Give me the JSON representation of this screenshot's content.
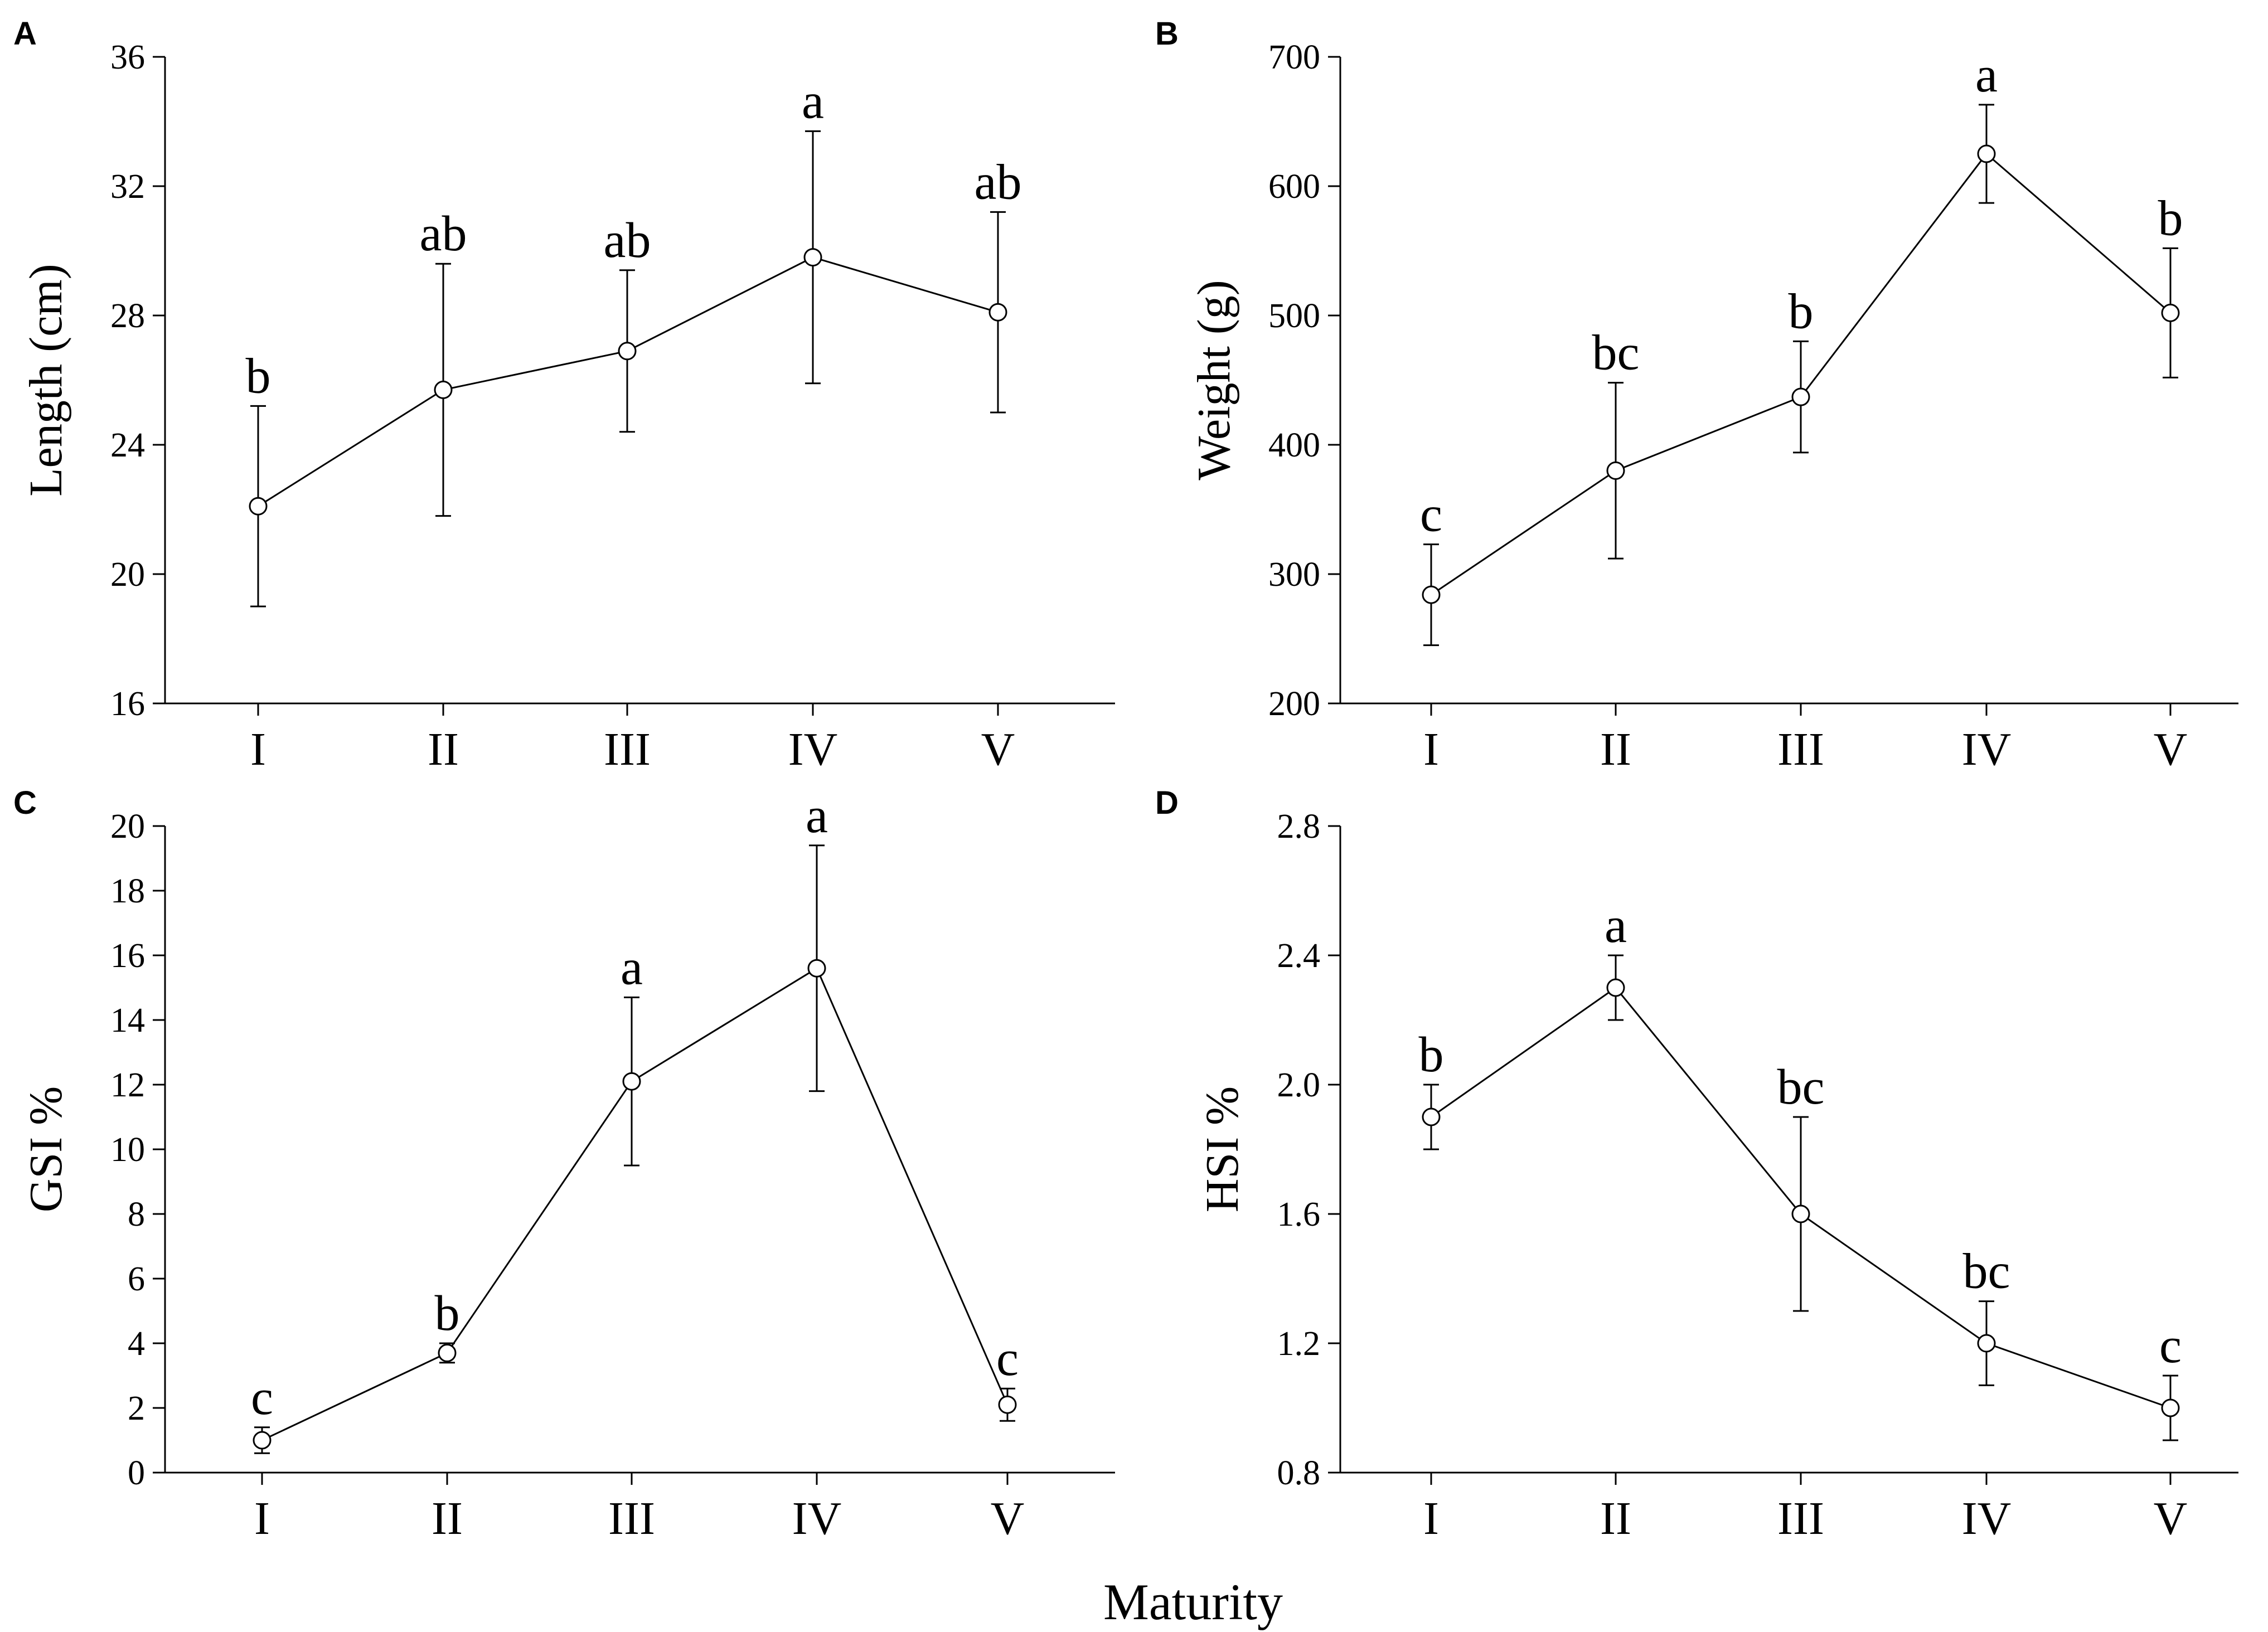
{
  "figure": {
    "common_xlabel": "Maturity"
  },
  "chart_data": [
    {
      "panel": "A",
      "type": "line",
      "title": "",
      "xlabel": "",
      "ylabel": "Length (cm)",
      "categories": [
        "I",
        "II",
        "III",
        "IV",
        "V"
      ],
      "values": [
        22.1,
        25.7,
        26.9,
        29.8,
        28.1
      ],
      "error_upper": [
        25.2,
        29.6,
        29.4,
        33.7,
        31.2
      ],
      "error_lower": [
        19.0,
        21.8,
        24.4,
        25.9,
        25.0
      ],
      "sig_letters": [
        "b",
        "ab",
        "ab",
        "a",
        "ab"
      ],
      "ylim": [
        16,
        36
      ],
      "yticks": [
        16,
        20,
        24,
        28,
        32,
        36
      ],
      "ytick_labels": [
        "16",
        "20",
        "24",
        "28",
        "32",
        "36"
      ]
    },
    {
      "panel": "B",
      "type": "line",
      "title": "",
      "xlabel": "",
      "ylabel": "Weight (g)",
      "categories": [
        "I",
        "II",
        "III",
        "IV",
        "V"
      ],
      "values": [
        284,
        380,
        437,
        625,
        502
      ],
      "error_upper": [
        323,
        448,
        480,
        663,
        552
      ],
      "error_lower": [
        245,
        312,
        394,
        587,
        452
      ],
      "sig_letters": [
        "c",
        "bc",
        "b",
        "a",
        "b"
      ],
      "ylim": [
        200,
        700
      ],
      "yticks": [
        200,
        300,
        400,
        500,
        600,
        700
      ],
      "ytick_labels": [
        "200",
        "300",
        "400",
        "500",
        "600",
        "700"
      ]
    },
    {
      "panel": "C",
      "type": "line",
      "title": "",
      "xlabel": "",
      "ylabel": "GSI %",
      "categories": [
        "I",
        "II",
        "III",
        "IV",
        "V"
      ],
      "values": [
        1.0,
        3.7,
        12.1,
        15.6,
        2.1
      ],
      "error_upper": [
        1.4,
        4.0,
        14.7,
        19.4,
        2.6
      ],
      "error_lower": [
        0.6,
        3.4,
        9.5,
        11.8,
        1.6
      ],
      "sig_letters": [
        "c",
        "b",
        "a",
        "a",
        "c"
      ],
      "ylim": [
        0,
        20
      ],
      "yticks": [
        0,
        2,
        4,
        6,
        8,
        10,
        12,
        14,
        16,
        18,
        20
      ],
      "ytick_labels": [
        "0",
        "2",
        "4",
        "6",
        "8",
        "10",
        "12",
        "14",
        "16",
        "18",
        "20"
      ]
    },
    {
      "panel": "D",
      "type": "line",
      "title": "",
      "xlabel": "",
      "ylabel": "HSI %",
      "categories": [
        "I",
        "II",
        "III",
        "IV",
        "V"
      ],
      "values": [
        1.9,
        2.3,
        1.6,
        1.2,
        1.0
      ],
      "error_upper": [
        2.0,
        2.4,
        1.9,
        1.33,
        1.1
      ],
      "error_lower": [
        1.8,
        2.2,
        1.3,
        1.07,
        0.9
      ],
      "sig_letters": [
        "b",
        "a",
        "bc",
        "bc",
        "c"
      ],
      "ylim": [
        0.8,
        2.8
      ],
      "yticks": [
        0.8,
        1.2,
        1.6,
        2.0,
        2.4,
        2.8
      ],
      "ytick_labels": [
        "0.8",
        "1.2",
        "1.6",
        "2.0",
        "2.4",
        "2.8"
      ]
    }
  ]
}
